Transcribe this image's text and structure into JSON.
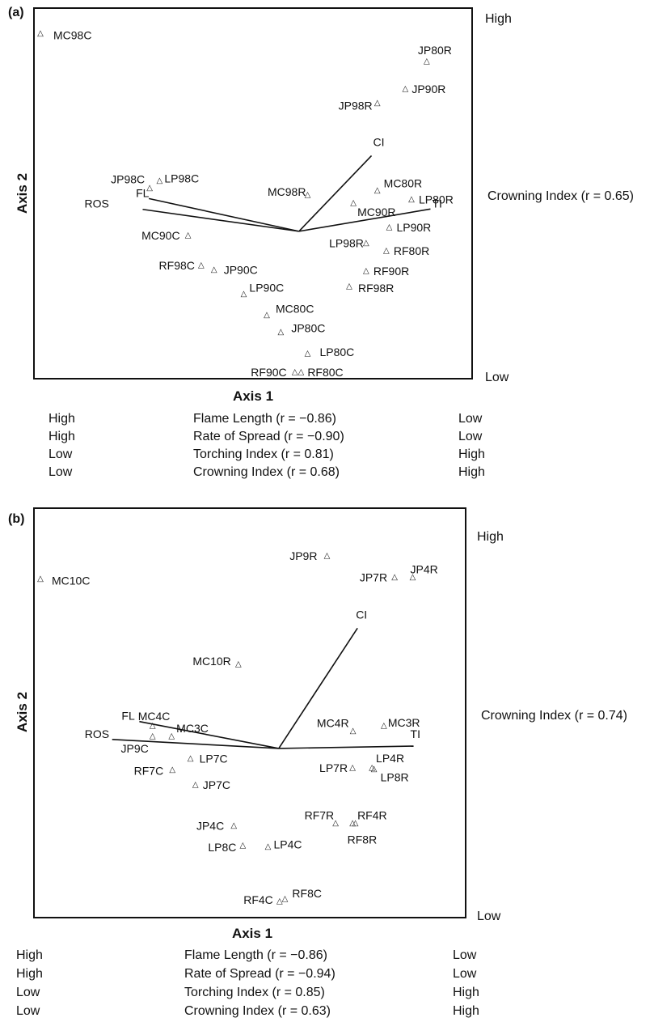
{
  "chart_data": [
    {
      "type": "scatter",
      "panel_label": "(a)",
      "xlabel": "Axis 1",
      "ylabel": "Axis 2",
      "right_labels": {
        "high": "High",
        "low": "Low",
        "vertical_vector": "Crowning Index (r = 0.65)"
      },
      "points": [
        {
          "label": "MC98C",
          "x": 0.0,
          "y": 0.949
        },
        {
          "label": "JP80R",
          "x": 0.937,
          "y": 0.872
        },
        {
          "label": "JP90R",
          "x": 0.885,
          "y": 0.796
        },
        {
          "label": "JP98R",
          "x": 0.817,
          "y": 0.756
        },
        {
          "label": "JP98C",
          "x": 0.265,
          "y": 0.52
        },
        {
          "label": "LP98C",
          "x": 0.289,
          "y": 0.54
        },
        {
          "label": "MC98R",
          "x": 0.648,
          "y": 0.501
        },
        {
          "label": "MC80R",
          "x": 0.817,
          "y": 0.514
        },
        {
          "label": "LP80R",
          "x": 0.9,
          "y": 0.489
        },
        {
          "label": "MC90R",
          "x": 0.759,
          "y": 0.479
        },
        {
          "label": "LP90R",
          "x": 0.846,
          "y": 0.411
        },
        {
          "label": "MC90C",
          "x": 0.358,
          "y": 0.389
        },
        {
          "label": "LP98R",
          "x": 0.79,
          "y": 0.367
        },
        {
          "label": "RF80R",
          "x": 0.839,
          "y": 0.346
        },
        {
          "label": "RF98C",
          "x": 0.39,
          "y": 0.306
        },
        {
          "label": "JP90C",
          "x": 0.421,
          "y": 0.293
        },
        {
          "label": "RF90R",
          "x": 0.79,
          "y": 0.29
        },
        {
          "label": "RF98R",
          "x": 0.749,
          "y": 0.247
        },
        {
          "label": "LP90C",
          "x": 0.493,
          "y": 0.226
        },
        {
          "label": "MC80C",
          "x": 0.549,
          "y": 0.167
        },
        {
          "label": "JP80C",
          "x": 0.583,
          "y": 0.12
        },
        {
          "label": "LP80C",
          "x": 0.648,
          "y": 0.061
        },
        {
          "label": "RF90C",
          "x": 0.617,
          "y": 0.009
        },
        {
          "label": "RF80C",
          "x": 0.632,
          "y": 0.009
        }
      ],
      "vectors": [
        {
          "label": "CI",
          "x1": 0.627,
          "y1": 0.398,
          "x2": 0.803,
          "y2": 0.608
        },
        {
          "label": "TI",
          "x1": 0.627,
          "y1": 0.398,
          "x2": 0.946,
          "y2": 0.46
        },
        {
          "label": "FL",
          "x1": 0.627,
          "y1": 0.398,
          "x2": 0.263,
          "y2": 0.489
        },
        {
          "label": "ROS",
          "x1": 0.627,
          "y1": 0.398,
          "x2": 0.248,
          "y2": 0.459
        }
      ],
      "table": [
        {
          "left": "High",
          "variable": "Flame Length (r = −0.86)",
          "right": "Low"
        },
        {
          "left": "High",
          "variable": "Rate of Spread (r = −0.90)",
          "right": "Low"
        },
        {
          "left": "Low",
          "variable": "Torching Index (r = 0.81)",
          "right": "High"
        },
        {
          "left": "Low",
          "variable": "Crowning Index (r = 0.68)",
          "right": "High"
        }
      ]
    },
    {
      "type": "scatter",
      "panel_label": "(b)",
      "xlabel": "Axis 1",
      "ylabel": "Axis 2",
      "right_labels": {
        "high": "High",
        "low": "Low",
        "vertical_vector": "Crowning Index (r = 0.74)"
      },
      "points": [
        {
          "label": "MC10C",
          "x": 0.0,
          "y": 0.853
        },
        {
          "label": "JP9R",
          "x": 0.695,
          "y": 0.913
        },
        {
          "label": "JP7R",
          "x": 0.859,
          "y": 0.858
        },
        {
          "label": "JP4R",
          "x": 0.903,
          "y": 0.858
        },
        {
          "label": "MC10R",
          "x": 0.48,
          "y": 0.634
        },
        {
          "label": "MC4C",
          "x": 0.272,
          "y": 0.476
        },
        {
          "label": "MC3C",
          "x": 0.318,
          "y": 0.449
        },
        {
          "label": "MC4R",
          "x": 0.758,
          "y": 0.463
        },
        {
          "label": "MC3R",
          "x": 0.833,
          "y": 0.476
        },
        {
          "label": "JP9C",
          "x": 0.272,
          "y": 0.449
        },
        {
          "label": "LP7C",
          "x": 0.364,
          "y": 0.392
        },
        {
          "label": "RF7C",
          "x": 0.32,
          "y": 0.363
        },
        {
          "label": "LP7R",
          "x": 0.757,
          "y": 0.368
        },
        {
          "label": "LP4R",
          "x": 0.804,
          "y": 0.368
        },
        {
          "label": "LP8R",
          "x": 0.809,
          "y": 0.365
        },
        {
          "label": "JP7C",
          "x": 0.376,
          "y": 0.324
        },
        {
          "label": "RF7R",
          "x": 0.716,
          "y": 0.226
        },
        {
          "label": "RF4R",
          "x": 0.757,
          "y": 0.226
        },
        {
          "label": "RF8R",
          "x": 0.764,
          "y": 0.226
        },
        {
          "label": "JP4C",
          "x": 0.469,
          "y": 0.219
        },
        {
          "label": "LP8C",
          "x": 0.491,
          "y": 0.168
        },
        {
          "label": "LP4C",
          "x": 0.552,
          "y": 0.165
        },
        {
          "label": "RF4C",
          "x": 0.58,
          "y": 0.025
        },
        {
          "label": "RF8C",
          "x": 0.593,
          "y": 0.031
        }
      ],
      "vectors": [
        {
          "label": "CI",
          "x1": 0.578,
          "y1": 0.416,
          "x2": 0.769,
          "y2": 0.725
        },
        {
          "label": "TI",
          "x1": 0.578,
          "y1": 0.416,
          "x2": 0.905,
          "y2": 0.422
        },
        {
          "label": "FL",
          "x1": 0.578,
          "y1": 0.416,
          "x2": 0.24,
          "y2": 0.485
        },
        {
          "label": "ROS",
          "x1": 0.578,
          "y1": 0.416,
          "x2": 0.174,
          "y2": 0.439
        }
      ],
      "table": [
        {
          "left": "High",
          "variable": "Flame Length (r = −0.86)",
          "right": "Low"
        },
        {
          "left": "High",
          "variable": "Rate of Spread (r = −0.94)",
          "right": "Low"
        },
        {
          "left": "Low",
          "variable": "Torching Index (r = 0.85)",
          "right": "High"
        },
        {
          "left": "Low",
          "variable": "Crowning Index (r = 0.63)",
          "right": "High"
        }
      ]
    }
  ]
}
